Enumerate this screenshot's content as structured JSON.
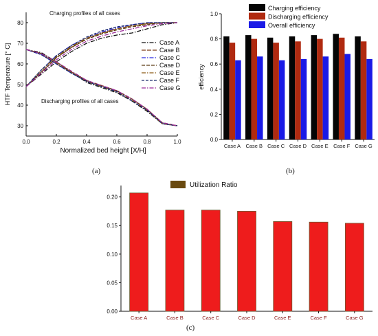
{
  "charts": {
    "a": {
      "caption": "(a)",
      "chart_data": {
        "type": "line",
        "title": "",
        "xlabel": "Normalized bed height [X/H]",
        "ylabel": "HTF Temperature [° C]",
        "xlim": [
          0,
          1
        ],
        "ylim": [
          25,
          85
        ],
        "xticks": [
          "0.0",
          "0.2",
          "0.4",
          "0.6",
          "0.8",
          "1.0"
        ],
        "yticks": [
          "30",
          "40",
          "50",
          "60",
          "70",
          "80"
        ],
        "annotations": [
          "Charging profiles of all cases",
          "Discharging profiles of all cases"
        ],
        "legend_position": "right",
        "x": [
          0,
          0.1,
          0.2,
          0.3,
          0.4,
          0.5,
          0.6,
          0.7,
          0.8,
          0.9,
          1.0
        ],
        "series": [
          {
            "name": "Case A",
            "color": "#111111",
            "charging": [
              49,
              55,
              61,
              66,
              70,
              72.5,
              74,
              75,
              77,
              79,
              80
            ],
            "discharging": [
              67,
              65.5,
              61,
              56,
              51,
              48.5,
              46,
              42,
              37,
              31,
              30
            ]
          },
          {
            "name": "Case B",
            "color": "#7a3a14",
            "charging": [
              49,
              56,
              63,
              68,
              72,
              75,
              77,
              78.5,
              79.5,
              80,
              80
            ],
            "discharging": [
              67,
              65,
              60,
              56,
              52,
              49.5,
              47,
              43,
              38,
              31,
              30
            ]
          },
          {
            "name": "Case C",
            "color": "#2a2ae0",
            "charging": [
              49,
              57,
              64,
              69,
              72.5,
              75.5,
              77.5,
              79,
              80,
              80,
              80
            ],
            "discharging": [
              67,
              64.5,
              60,
              55.5,
              51.5,
              49,
              46.5,
              42.5,
              38,
              31,
              30
            ]
          },
          {
            "name": "Case D",
            "color": "#5a3a14",
            "charging": [
              49,
              56,
              63,
              68,
              72,
              74.5,
              76.5,
              78,
              79,
              80,
              80
            ],
            "discharging": [
              67,
              65,
              61,
              56,
              52,
              49,
              47,
              43,
              38,
              31.5,
              30
            ]
          },
          {
            "name": "Case E",
            "color": "#8a5a14",
            "charging": [
              49,
              57,
              63.5,
              68.5,
              72.5,
              75,
              77,
              78.5,
              79.5,
              80,
              80
            ],
            "discharging": [
              67,
              65,
              60.5,
              56,
              51.5,
              49,
              46.5,
              42.5,
              37.5,
              31,
              30
            ]
          },
          {
            "name": "Case F",
            "color": "#1a2a6a",
            "charging": [
              49,
              57,
              64,
              69,
              73,
              76,
              78,
              79,
              80,
              80,
              80
            ],
            "discharging": [
              67,
              64.5,
              60,
              55.5,
              51.5,
              49,
              46.5,
              42,
              37.5,
              31,
              30
            ]
          },
          {
            "name": "Case G",
            "color": "#9a2a9a",
            "charging": [
              49,
              55.5,
              62,
              67,
              71,
              73.5,
              75.5,
              77,
              78.5,
              79.5,
              80
            ],
            "discharging": [
              67,
              65,
              61,
              56.5,
              52,
              49.5,
              47,
              43,
              38,
              31.5,
              30
            ]
          }
        ]
      }
    },
    "b": {
      "caption": "(b)",
      "chart_data": {
        "type": "bar",
        "title": "",
        "xlabel": "",
        "ylabel": "efficiency",
        "ylim": [
          0,
          1.0
        ],
        "yticks": [
          "0.0",
          "0.2",
          "0.4",
          "0.6",
          "0.8",
          "1.0"
        ],
        "legend_position": "top",
        "categories": [
          "Case A",
          "Case B",
          "Case C",
          "Case D",
          "Case E",
          "Case F",
          "Case G"
        ],
        "series": [
          {
            "name": "Charging efficiency",
            "color": "#050505",
            "values": [
              0.82,
              0.83,
              0.81,
              0.82,
              0.83,
              0.84,
              0.82
            ]
          },
          {
            "name": "Discharging efficiency",
            "color": "#b02a10",
            "values": [
              0.77,
              0.8,
              0.77,
              0.78,
              0.8,
              0.81,
              0.78
            ]
          },
          {
            "name": "Overall efficiency",
            "color": "#1a1ae6",
            "values": [
              0.63,
              0.66,
              0.63,
              0.64,
              0.66,
              0.68,
              0.64
            ]
          }
        ]
      }
    },
    "c": {
      "caption": "(c)",
      "chart_data": {
        "type": "bar",
        "title": "",
        "xlabel": "",
        "ylabel": "",
        "ylim": [
          0,
          0.22
        ],
        "yticks": [
          "0.00",
          "0.05",
          "0.10",
          "0.15",
          "0.20"
        ],
        "legend_position": "top-center",
        "categories": [
          "Case A",
          "Case B",
          "Case C",
          "Case D",
          "Case E",
          "Case F",
          "Case G"
        ],
        "series": [
          {
            "name": "Utilization Ratio",
            "color": "#ee1c1c",
            "values": [
              0.207,
              0.177,
              0.177,
              0.175,
              0.157,
              0.156,
              0.154
            ]
          }
        ]
      }
    }
  }
}
